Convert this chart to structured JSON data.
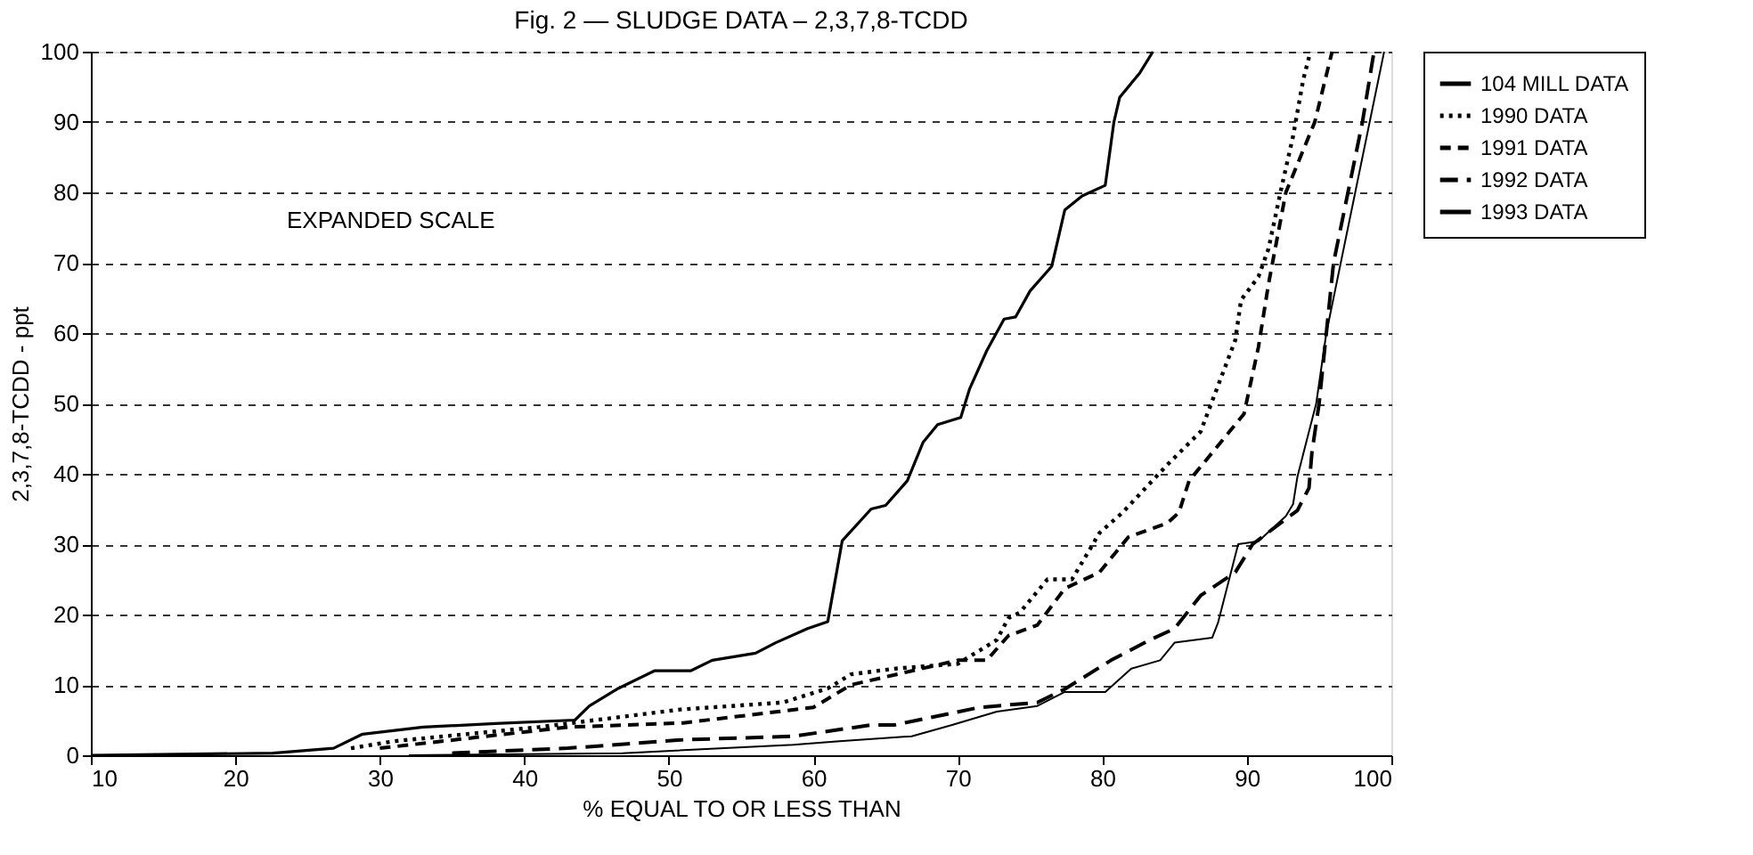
{
  "chart_data": {
    "type": "line",
    "title": "Fig. 2 — SLUDGE DATA – 2,3,7,8-TCDD",
    "xlabel": "% EQUAL TO OR LESS THAN",
    "ylabel": "2,3,7,8-TCDD - ppt",
    "annotations": [
      "EXPANDED SCALE"
    ],
    "xlim": [
      10,
      100
    ],
    "ylim": [
      0,
      100
    ],
    "xticks": [
      10,
      20,
      30,
      40,
      50,
      60,
      70,
      80,
      90,
      100
    ],
    "yticks": [
      0,
      10,
      20,
      30,
      40,
      50,
      60,
      70,
      80,
      90,
      100
    ],
    "grid": "y",
    "legend": "top right",
    "marker": "none",
    "series": [
      {
        "name": "104 MILL DATA",
        "color": "#000000",
        "line_style": "solid",
        "x": [
          10,
          22.6,
          26.8,
          28.8,
          33,
          38,
          43.5,
          44.5,
          46.5,
          49,
          51.5,
          53,
          56,
          57.4,
          59.6,
          61,
          62,
          64,
          65,
          66.5,
          67.6,
          68.6,
          70.2,
          70.8,
          72,
          73.2,
          74,
          75,
          76.5,
          77.4,
          78.6,
          80.2,
          80.8,
          81.2,
          82.6,
          83.5
        ],
        "values": [
          0,
          0.3,
          1,
          3,
          4,
          4.5,
          5,
          7,
          9.5,
          12,
          12,
          13.5,
          14.5,
          16,
          18,
          19,
          30.5,
          35,
          35.5,
          39,
          44.5,
          47,
          48,
          52,
          57.5,
          62,
          62.3,
          66,
          69.5,
          77.5,
          79.5,
          81,
          90,
          93.5,
          97,
          100
        ]
      },
      {
        "name": "1990 DATA",
        "color": "#000000",
        "line_style": "dotted",
        "x": [
          28,
          31,
          41,
          50.8,
          57.9,
          61,
          62.6,
          65.6,
          70,
          72.7,
          73.5,
          74.3,
          76.2,
          77.9,
          79,
          79.8,
          81.4,
          83,
          84.5,
          86.8,
          89.2,
          89.6,
          90.8,
          91.5,
          92.4,
          93.2,
          93.9,
          94.4
        ],
        "values": [
          1,
          2,
          4,
          6.5,
          7.5,
          9.5,
          11.5,
          12.3,
          13,
          16.4,
          19.5,
          20.3,
          25,
          25,
          28.8,
          31.6,
          34.5,
          38,
          41.3,
          46,
          59,
          64.7,
          68,
          72,
          80.7,
          88,
          96,
          100
        ]
      },
      {
        "name": "1991 DATA",
        "color": "#000000",
        "line_style": "dashed",
        "x": [
          30,
          43,
          51,
          60,
          62.6,
          70,
          72,
          73.5,
          75.5,
          77.4,
          79.8,
          81.8,
          84.5,
          85.3,
          86,
          87.6,
          88.8,
          89.8,
          90.8,
          91.5,
          92.7,
          94.7,
          95.9
        ],
        "values": [
          1,
          4,
          4.6,
          6.8,
          10,
          13.5,
          13.5,
          17,
          18.5,
          23.7,
          26,
          31,
          33,
          34.5,
          39,
          43,
          46,
          48.5,
          58,
          67,
          80,
          90,
          100
        ]
      },
      {
        "name": "1992 DATA",
        "color": "#000000",
        "line_style": "longdash",
        "x": [
          35,
          43,
          51,
          58.6,
          64,
          65.6,
          71.5,
          75.5,
          77.4,
          80.6,
          83.3,
          85,
          86.8,
          89.2,
          90.4,
          93.5,
          94.3,
          94.5,
          95,
          95.5,
          96,
          97,
          98,
          98.8
        ],
        "values": [
          0.3,
          1,
          2.2,
          2.7,
          4.3,
          4.3,
          6.8,
          7.5,
          9.4,
          13.5,
          16.4,
          18,
          22.7,
          26,
          30,
          34.8,
          38,
          43,
          50,
          60,
          70,
          80,
          90,
          100
        ]
      },
      {
        "name": "1993 DATA",
        "color": "#000000",
        "line_style": "solid",
        "x": [
          32,
          46.8,
          58.6,
          61.8,
          66.8,
          69.6,
          72.7,
          75.5,
          77.4,
          80.2,
          82,
          84,
          85,
          87.6,
          88,
          89.4,
          90.8,
          92.7,
          93.2,
          93.5,
          94.3,
          94.8,
          95.5,
          96.5,
          97.5,
          98.5,
          99.5
        ],
        "values": [
          0,
          0.3,
          1.5,
          2,
          2.7,
          4.3,
          6.2,
          7,
          9,
          9,
          12.3,
          13.5,
          16,
          16.7,
          18.8,
          30,
          30.4,
          34,
          35.7,
          39.6,
          46,
          50,
          60,
          70,
          80,
          90,
          100
        ]
      }
    ]
  }
}
